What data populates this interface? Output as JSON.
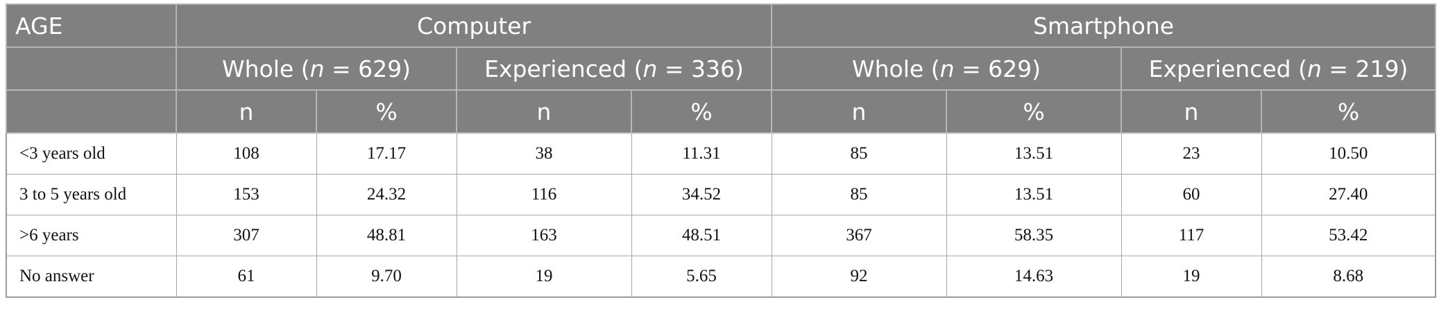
{
  "header": {
    "age_label": "AGE",
    "groups": [
      {
        "label": "Computer"
      },
      {
        "label": "Smartphone"
      }
    ],
    "subgroups": [
      {
        "prefix": "Whole (",
        "n_symbol": "n",
        "suffix": " = 629)"
      },
      {
        "prefix": "Experienced (",
        "n_symbol": "n",
        "suffix": " = 336)"
      },
      {
        "prefix": "Whole (",
        "n_symbol": "n",
        "suffix": " = 629)"
      },
      {
        "prefix": "Experienced (",
        "n_symbol": "n",
        "suffix": " = 219)"
      }
    ],
    "cols": [
      "n",
      "%",
      "n",
      "%",
      "n",
      "%",
      "n",
      "%"
    ]
  },
  "rows": [
    {
      "label": "<3 years old",
      "values": [
        "108",
        "17.17",
        "38",
        "11.31",
        "85",
        "13.51",
        "23",
        "10.50"
      ]
    },
    {
      "label": "3 to 5 years old",
      "values": [
        "153",
        "24.32",
        "116",
        "34.52",
        "85",
        "13.51",
        "60",
        "27.40"
      ]
    },
    {
      "label": ">6 years",
      "values": [
        "307",
        "48.81",
        "163",
        "48.51",
        "367",
        "58.35",
        "117",
        "53.42"
      ]
    },
    {
      "label": "No answer",
      "values": [
        "61",
        "9.70",
        "19",
        "5.65",
        "92",
        "14.63",
        "19",
        "8.68"
      ]
    }
  ]
}
